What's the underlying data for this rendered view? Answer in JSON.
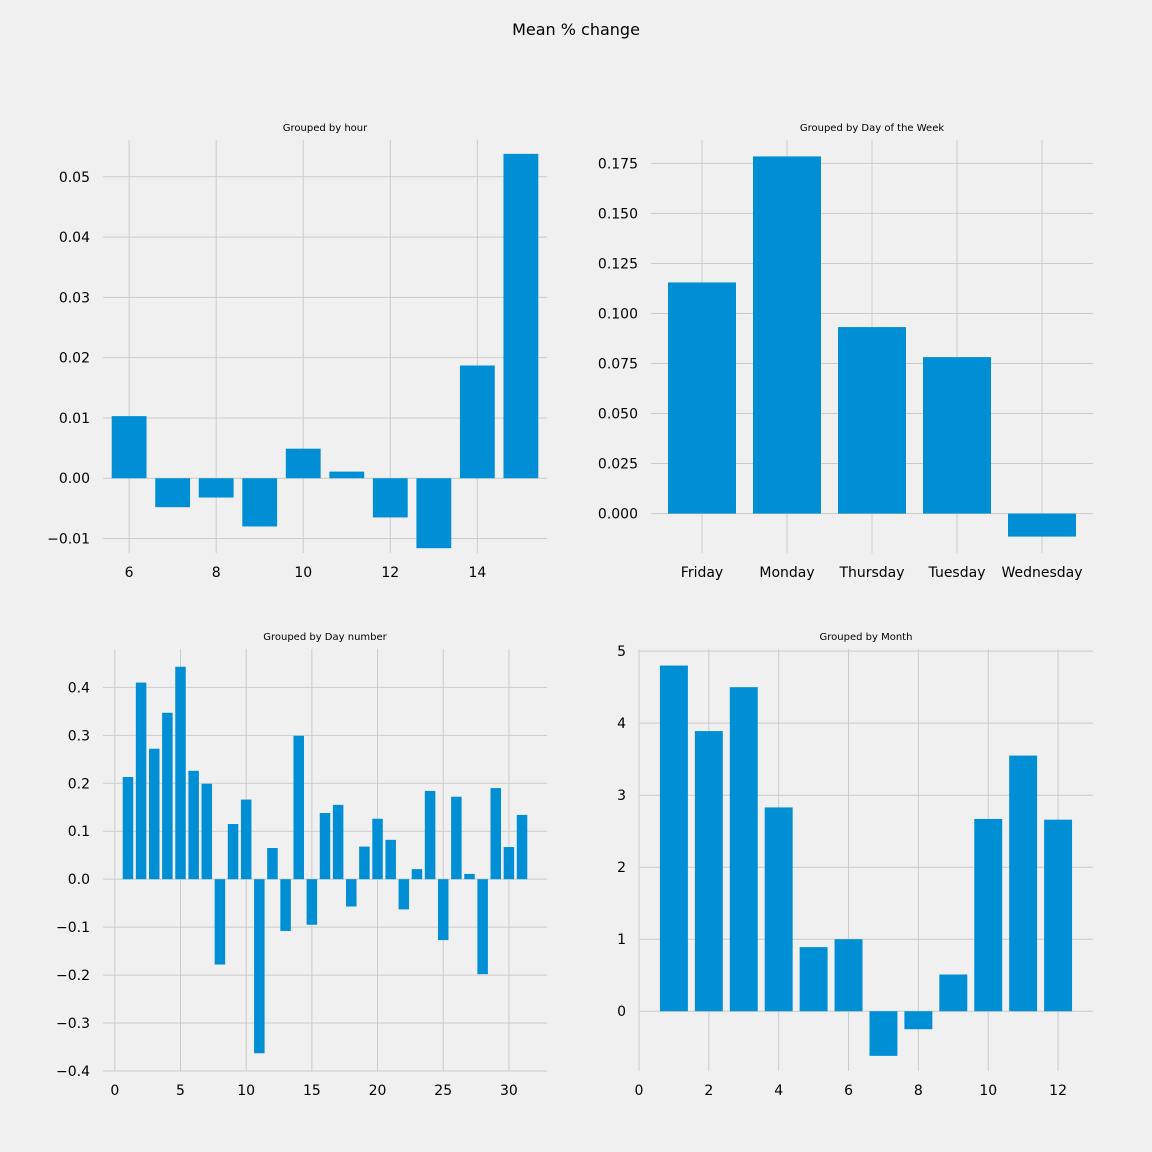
{
  "suptitle": "Mean % change",
  "colors": {
    "bar": "#008fd5",
    "grid": "#cbcbcb",
    "background": "#f0f0f0"
  },
  "chart_data": [
    {
      "id": "hour",
      "type": "bar",
      "title": "Grouped by hour",
      "x": [
        6,
        7,
        8,
        9,
        10,
        11,
        12,
        13,
        14,
        15
      ],
      "values": [
        0.0103,
        -0.0048,
        -0.0032,
        -0.008,
        0.0049,
        0.0011,
        -0.0065,
        -0.0116,
        0.0187,
        0.0538
      ],
      "bar_width": 0.8,
      "xlim": [
        5.4,
        15.6
      ],
      "ylim": [
        -0.0124,
        0.0561
      ],
      "xticks": [
        6,
        8,
        10,
        12,
        14
      ],
      "xtick_labels": [
        "6",
        "8",
        "10",
        "12",
        "14"
      ],
      "yticks": [
        -0.01,
        0.0,
        0.01,
        0.02,
        0.03,
        0.04,
        0.05
      ],
      "ytick_labels": [
        "−0.01",
        "0.00",
        "0.01",
        "0.02",
        "0.03",
        "0.04",
        "0.05"
      ]
    },
    {
      "id": "weekday",
      "type": "bar",
      "title": "Grouped by Day of the Week",
      "categories": [
        "Friday",
        "Monday",
        "Thursday",
        "Tuesday",
        "Wednesday"
      ],
      "x": [
        0,
        1,
        2,
        3,
        4
      ],
      "values": [
        0.1155,
        0.1785,
        0.0932,
        0.0782,
        -0.0115
      ],
      "bar_width": 0.8,
      "xlim": [
        -0.6,
        4.6
      ],
      "ylim": [
        -0.0197,
        0.1867
      ],
      "xticks": [
        0,
        1,
        2,
        3,
        4
      ],
      "xtick_labels": [
        "Friday",
        "Monday",
        "Thursday",
        "Tuesday",
        "Wednesday"
      ],
      "yticks": [
        0.0,
        0.025,
        0.05,
        0.075,
        0.1,
        0.125,
        0.15,
        0.175
      ],
      "ytick_labels": [
        "0.000",
        "0.025",
        "0.050",
        "0.075",
        "0.100",
        "0.125",
        "0.150",
        "0.175"
      ]
    },
    {
      "id": "daynum",
      "type": "bar",
      "title": "Grouped by Day number",
      "x": [
        1,
        2,
        3,
        4,
        5,
        6,
        7,
        8,
        9,
        10,
        11,
        12,
        13,
        14,
        15,
        16,
        17,
        18,
        19,
        20,
        21,
        22,
        23,
        24,
        25,
        26,
        27,
        28,
        29,
        30,
        31
      ],
      "values": [
        0.213,
        0.41,
        0.272,
        0.347,
        0.443,
        0.226,
        0.199,
        -0.178,
        0.115,
        0.166,
        -0.363,
        0.065,
        -0.108,
        0.299,
        -0.095,
        0.138,
        0.155,
        -0.057,
        0.068,
        0.126,
        0.082,
        -0.063,
        0.021,
        0.184,
        -0.127,
        0.172,
        0.011,
        -0.198,
        0.19,
        0.067,
        0.134
      ],
      "bar_width": 0.8,
      "xlim": [
        -0.9,
        32.9
      ],
      "ylim": [
        -0.4,
        0.48
      ],
      "xticks": [
        0,
        5,
        10,
        15,
        20,
        25,
        30
      ],
      "xtick_labels": [
        "0",
        "5",
        "10",
        "15",
        "20",
        "25",
        "30"
      ],
      "yticks": [
        -0.4,
        -0.3,
        -0.2,
        -0.1,
        0.0,
        0.1,
        0.2,
        0.3,
        0.4
      ],
      "ytick_labels": [
        "−0.4",
        "−0.3",
        "−0.2",
        "−0.1",
        "0.0",
        "0.1",
        "0.2",
        "0.3",
        "0.4"
      ]
    },
    {
      "id": "month",
      "type": "bar",
      "title": "Grouped by Month",
      "x": [
        1,
        2,
        3,
        4,
        5,
        6,
        7,
        8,
        9,
        10,
        11,
        12
      ],
      "values": [
        4.8,
        3.89,
        4.5,
        2.83,
        0.89,
        1.0,
        -0.62,
        -0.25,
        0.51,
        2.67,
        3.55,
        2.66
      ],
      "bar_width": 0.8,
      "xlim": [
        0.0,
        13.0
      ],
      "ylim": [
        -0.83,
        5.03
      ],
      "xticks": [
        0,
        2,
        4,
        6,
        8,
        10,
        12
      ],
      "xtick_labels": [
        "0",
        "2",
        "4",
        "6",
        "8",
        "10",
        "12"
      ],
      "yticks": [
        0,
        1,
        2,
        3,
        4,
        5
      ],
      "ytick_labels": [
        "0",
        "1",
        "2",
        "3",
        "4",
        "5"
      ]
    }
  ]
}
